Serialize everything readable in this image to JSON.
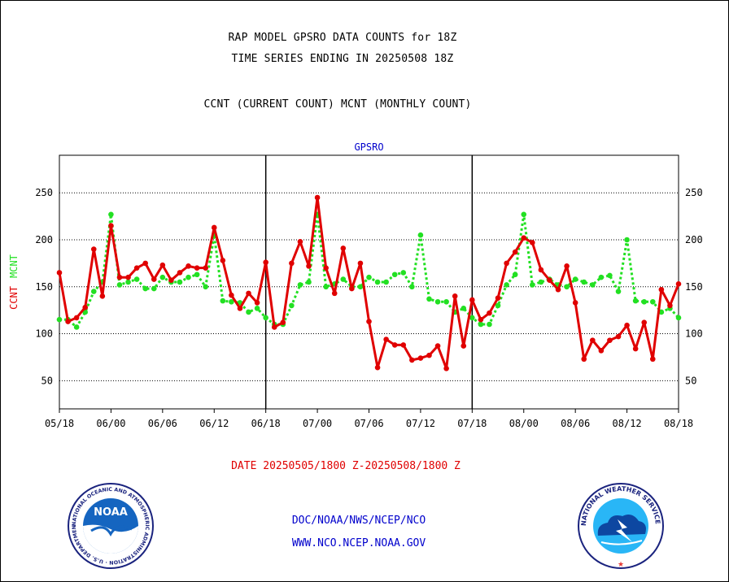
{
  "header": {
    "title_line1": "RAP MODEL GPSRO DATA COUNTS for 18Z",
    "title_line2": "TIME SERIES ENDING IN 20250508 18Z",
    "subtitle": "CCNT (CURRENT COUNT) MCNT (MONTHLY COUNT)"
  },
  "footer": {
    "date_range": "DATE 20250505/1800 Z-20250508/1800 Z",
    "credit_line1": "DOC/NOAA/NWS/NCEP/NCO",
    "credit_line2": "WWW.NCO.NCEP.NOAA.GOV"
  },
  "logos": {
    "noaa": "NOAA",
    "noaa_ring": "NATIONAL OCEANIC AND ATMOSPHERIC ADMINISTRATION · U.S. DEPARTMENT OF COMMERCE",
    "nws_ring": "NATIONAL WEATHER SERVICE"
  },
  "colors": {
    "ccnt": "#e00000",
    "mcnt": "#22e022",
    "panel_label": "#0000cc",
    "grid": "#000000"
  },
  "chart_data": {
    "type": "line",
    "panel_label": "GPSRO",
    "ylabel_parts": [
      "CCNT",
      "MCNT"
    ],
    "ylim": [
      20,
      290
    ],
    "yticks": [
      50,
      100,
      150,
      200,
      250
    ],
    "xlim": [
      0,
      72
    ],
    "xticks": [
      {
        "x": 0,
        "label": "05/18"
      },
      {
        "x": 6,
        "label": "06/00"
      },
      {
        "x": 12,
        "label": "06/06"
      },
      {
        "x": 18,
        "label": "06/12"
      },
      {
        "x": 24,
        "label": "06/18"
      },
      {
        "x": 30,
        "label": "07/00"
      },
      {
        "x": 36,
        "label": "07/06"
      },
      {
        "x": 42,
        "label": "07/12"
      },
      {
        "x": 48,
        "label": "07/18"
      },
      {
        "x": 54,
        "label": "08/00"
      },
      {
        "x": 60,
        "label": "08/06"
      },
      {
        "x": 66,
        "label": "08/12"
      },
      {
        "x": 72,
        "label": "08/18"
      }
    ],
    "day_separators": [
      24,
      48
    ],
    "grid": "dotted horizontal",
    "series": [
      {
        "name": "CCNT",
        "style": "solid",
        "values": [
          165,
          113,
          117,
          128,
          190,
          140,
          215,
          160,
          160,
          170,
          175,
          158,
          173,
          157,
          165,
          172,
          170,
          170,
          213,
          178,
          141,
          127,
          143,
          133,
          176,
          107,
          112,
          175,
          198,
          172,
          245,
          170,
          143,
          191,
          148,
          175,
          113,
          64,
          94,
          88,
          88,
          72,
          74,
          77,
          87,
          63,
          140,
          87,
          136,
          115,
          122,
          138,
          175,
          187,
          202,
          197,
          168,
          157,
          147,
          172,
          133,
          73,
          93,
          82,
          93,
          97,
          109,
          84,
          112,
          73,
          147,
          130,
          153
        ]
      },
      {
        "name": "MCNT",
        "style": "dotted",
        "values": [
          115,
          115,
          107,
          123,
          145,
          155,
          227,
          152,
          155,
          158,
          148,
          148,
          160,
          155,
          155,
          160,
          163,
          150,
          205,
          135,
          134,
          133,
          123,
          127,
          117,
          110,
          110,
          130,
          152,
          155,
          227,
          150,
          153,
          158,
          150,
          150,
          160,
          155,
          155,
          163,
          165,
          150,
          205,
          137,
          134,
          134,
          123,
          127,
          117,
          110,
          110,
          130,
          152,
          163,
          227,
          152,
          155,
          158,
          152,
          150,
          158,
          155,
          152,
          160,
          162,
          145,
          200,
          135,
          134,
          134,
          123,
          127,
          117
        ]
      }
    ]
  }
}
